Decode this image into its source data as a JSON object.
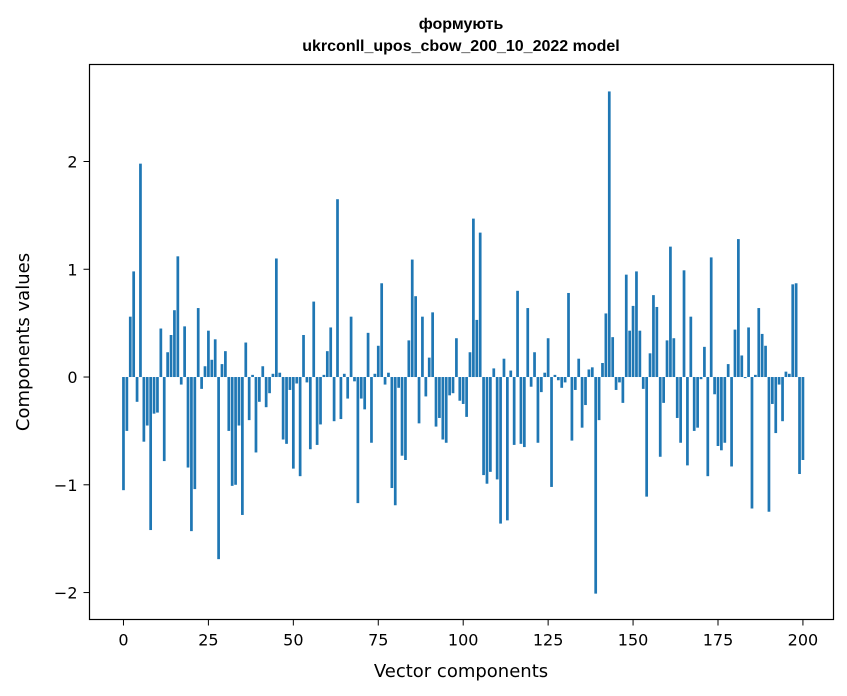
{
  "chart_data": {
    "type": "bar",
    "title": "формують",
    "subtitle": "ukrconll_upos_cbow_200_10_2022 model",
    "xlabel": "Vector components",
    "ylabel": "Components values",
    "xlim": [
      -10,
      209
    ],
    "ylim": [
      -2.25,
      2.9
    ],
    "xticks": [
      0,
      25,
      50,
      75,
      100,
      125,
      150,
      175,
      200
    ],
    "yticks": [
      -2,
      -1,
      0,
      1,
      2
    ],
    "ytick_labels": [
      "−2",
      "−1",
      "0",
      "1",
      "2"
    ],
    "grid": false,
    "bar_color": "#1f77b4",
    "values": [
      -1.05,
      -0.5,
      0.56,
      0.98,
      -0.23,
      1.98,
      -0.6,
      -0.45,
      -1.42,
      -0.34,
      -0.33,
      0.45,
      -0.78,
      0.23,
      0.39,
      0.62,
      1.12,
      -0.07,
      0.47,
      -0.84,
      -1.43,
      -1.04,
      0.64,
      -0.11,
      0.1,
      0.43,
      0.16,
      0.35,
      -1.69,
      0.12,
      0.24,
      -0.5,
      -1.01,
      -1.0,
      -0.45,
      -1.28,
      0.32,
      -0.4,
      0.02,
      -0.7,
      -0.23,
      0.1,
      -0.28,
      -0.15,
      0.03,
      1.1,
      0.04,
      -0.58,
      -0.62,
      -0.12,
      -0.85,
      -0.06,
      -0.92,
      0.39,
      -0.05,
      -0.67,
      0.7,
      -0.63,
      -0.44,
      0.02,
      0.24,
      0.46,
      -0.41,
      1.65,
      -0.39,
      0.03,
      -0.2,
      0.56,
      -0.04,
      -1.17,
      -0.2,
      -0.3,
      0.41,
      -0.61,
      0.03,
      0.29,
      0.87,
      -0.07,
      0.04,
      -1.03,
      -1.19,
      -0.1,
      -0.73,
      -0.77,
      0.34,
      1.09,
      0.75,
      -0.43,
      0.56,
      -0.18,
      0.18,
      0.6,
      -0.46,
      -0.38,
      -0.58,
      -0.61,
      -0.17,
      -0.15,
      0.36,
      -0.22,
      -0.25,
      -0.37,
      0.23,
      1.47,
      0.53,
      1.34,
      -0.91,
      -0.99,
      -0.88,
      0.08,
      -0.95,
      -1.36,
      0.17,
      -1.33,
      0.06,
      -0.63,
      0.8,
      -0.62,
      -0.65,
      0.64,
      -0.09,
      0.23,
      -0.61,
      -0.14,
      0.04,
      0.36,
      -1.02,
      0.02,
      -0.03,
      -0.1,
      -0.05,
      0.78,
      -0.59,
      -0.12,
      0.17,
      -0.47,
      -0.26,
      0.07,
      0.09,
      -2.01,
      -0.4,
      0.13,
      0.59,
      2.65,
      0.37,
      -0.12,
      -0.05,
      -0.24,
      0.95,
      0.43,
      0.66,
      0.98,
      0.43,
      -0.11,
      -1.11,
      0.22,
      0.76,
      0.65,
      -0.74,
      -0.24,
      0.34,
      1.21,
      0.36,
      -0.38,
      -0.61,
      0.99,
      -0.82,
      0.56,
      -0.5,
      -0.47,
      -0.02,
      0.28,
      -0.92,
      1.11,
      -0.16,
      -0.64,
      -0.68,
      -0.61,
      0.12,
      -0.83,
      0.44,
      1.28,
      0.2,
      -0.01,
      0.46,
      -1.22,
      0.02,
      0.64,
      0.4,
      0.29,
      -1.25,
      -0.25,
      -0.52,
      -0.07,
      -0.41,
      0.05,
      0.03,
      0.86,
      0.87,
      -0.9,
      -0.77
    ]
  }
}
